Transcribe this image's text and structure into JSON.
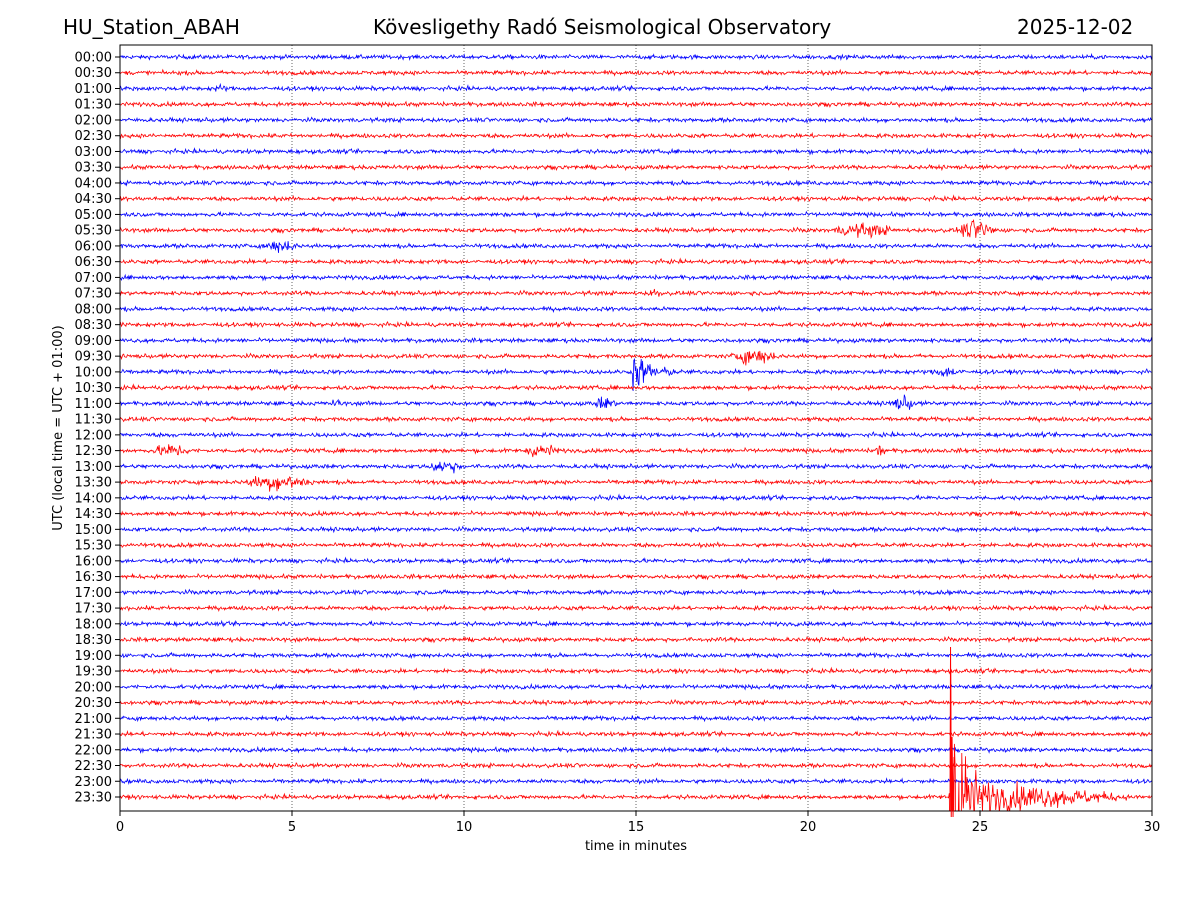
{
  "header": {
    "station": "HU_Station_ABAH",
    "observatory": "Kövesligethy Radó Seismological Observatory",
    "date": "2025-12-02"
  },
  "chart_data": {
    "type": "line",
    "title": "Kövesligethy Radó Seismological Observatory",
    "xlabel": "time in minutes",
    "ylabel": "UTC (local time = UTC + 01:00)",
    "xlim": [
      0,
      30
    ],
    "xticks": [
      0,
      5,
      10,
      15,
      20,
      25,
      30
    ],
    "grid": "vertical dotted",
    "row_labels": [
      "00:00",
      "00:30",
      "01:00",
      "01:30",
      "02:00",
      "02:30",
      "03:00",
      "03:30",
      "04:00",
      "04:30",
      "05:00",
      "05:30",
      "06:00",
      "06:30",
      "07:00",
      "07:30",
      "08:00",
      "08:30",
      "09:00",
      "09:30",
      "10:00",
      "10:30",
      "11:00",
      "11:30",
      "12:00",
      "12:30",
      "13:00",
      "13:30",
      "14:00",
      "14:30",
      "15:00",
      "15:30",
      "16:00",
      "16:30",
      "17:00",
      "17:30",
      "18:00",
      "18:30",
      "19:00",
      "19:30",
      "20:00",
      "20:30",
      "21:00",
      "21:30",
      "22:00",
      "22:30",
      "23:00",
      "23:30"
    ],
    "colors": [
      "#0000ff",
      "#ff0000"
    ],
    "events": [
      {
        "row": "01:00",
        "start": 2.6,
        "duration": 0.6,
        "amplitude": 3,
        "kind": "burst"
      },
      {
        "row": "05:30",
        "start": 20.4,
        "duration": 2.4,
        "amplitude": 5,
        "kind": "burst"
      },
      {
        "row": "05:30",
        "start": 24.2,
        "duration": 1.4,
        "amplitude": 7,
        "kind": "burst"
      },
      {
        "row": "06:00",
        "start": 4.0,
        "duration": 1.3,
        "amplitude": 5,
        "kind": "burst"
      },
      {
        "row": "07:30",
        "start": 15.3,
        "duration": 0.5,
        "amplitude": 4,
        "kind": "burst"
      },
      {
        "row": "09:30",
        "start": 17.6,
        "duration": 1.7,
        "amplitude": 6,
        "kind": "burst"
      },
      {
        "row": "10:00",
        "start": 14.9,
        "duration": 2.5,
        "amplitude": 15,
        "kind": "quake"
      },
      {
        "row": "10:00",
        "start": 23.4,
        "duration": 1.3,
        "amplitude": 4,
        "kind": "burst"
      },
      {
        "row": "11:00",
        "start": 6.0,
        "duration": 0.6,
        "amplitude": 3,
        "kind": "burst"
      },
      {
        "row": "11:00",
        "start": 13.7,
        "duration": 0.8,
        "amplitude": 5,
        "kind": "burst"
      },
      {
        "row": "11:00",
        "start": 22.2,
        "duration": 1.1,
        "amplitude": 5,
        "kind": "burst"
      },
      {
        "row": "12:30",
        "start": 0.8,
        "duration": 1.4,
        "amplitude": 5,
        "kind": "burst"
      },
      {
        "row": "12:30",
        "start": 11.6,
        "duration": 1.3,
        "amplitude": 5,
        "kind": "burst"
      },
      {
        "row": "12:30",
        "start": 21.8,
        "duration": 0.6,
        "amplitude": 4,
        "kind": "burst"
      },
      {
        "row": "13:00",
        "start": 8.8,
        "duration": 1.3,
        "amplitude": 5,
        "kind": "burst"
      },
      {
        "row": "13:30",
        "start": 3.3,
        "duration": 2.6,
        "amplitude": 6,
        "kind": "burst"
      },
      {
        "row": "23:30",
        "start": 24.1,
        "duration": 5.2,
        "amplitude": 150,
        "kind": "quake"
      }
    ]
  }
}
